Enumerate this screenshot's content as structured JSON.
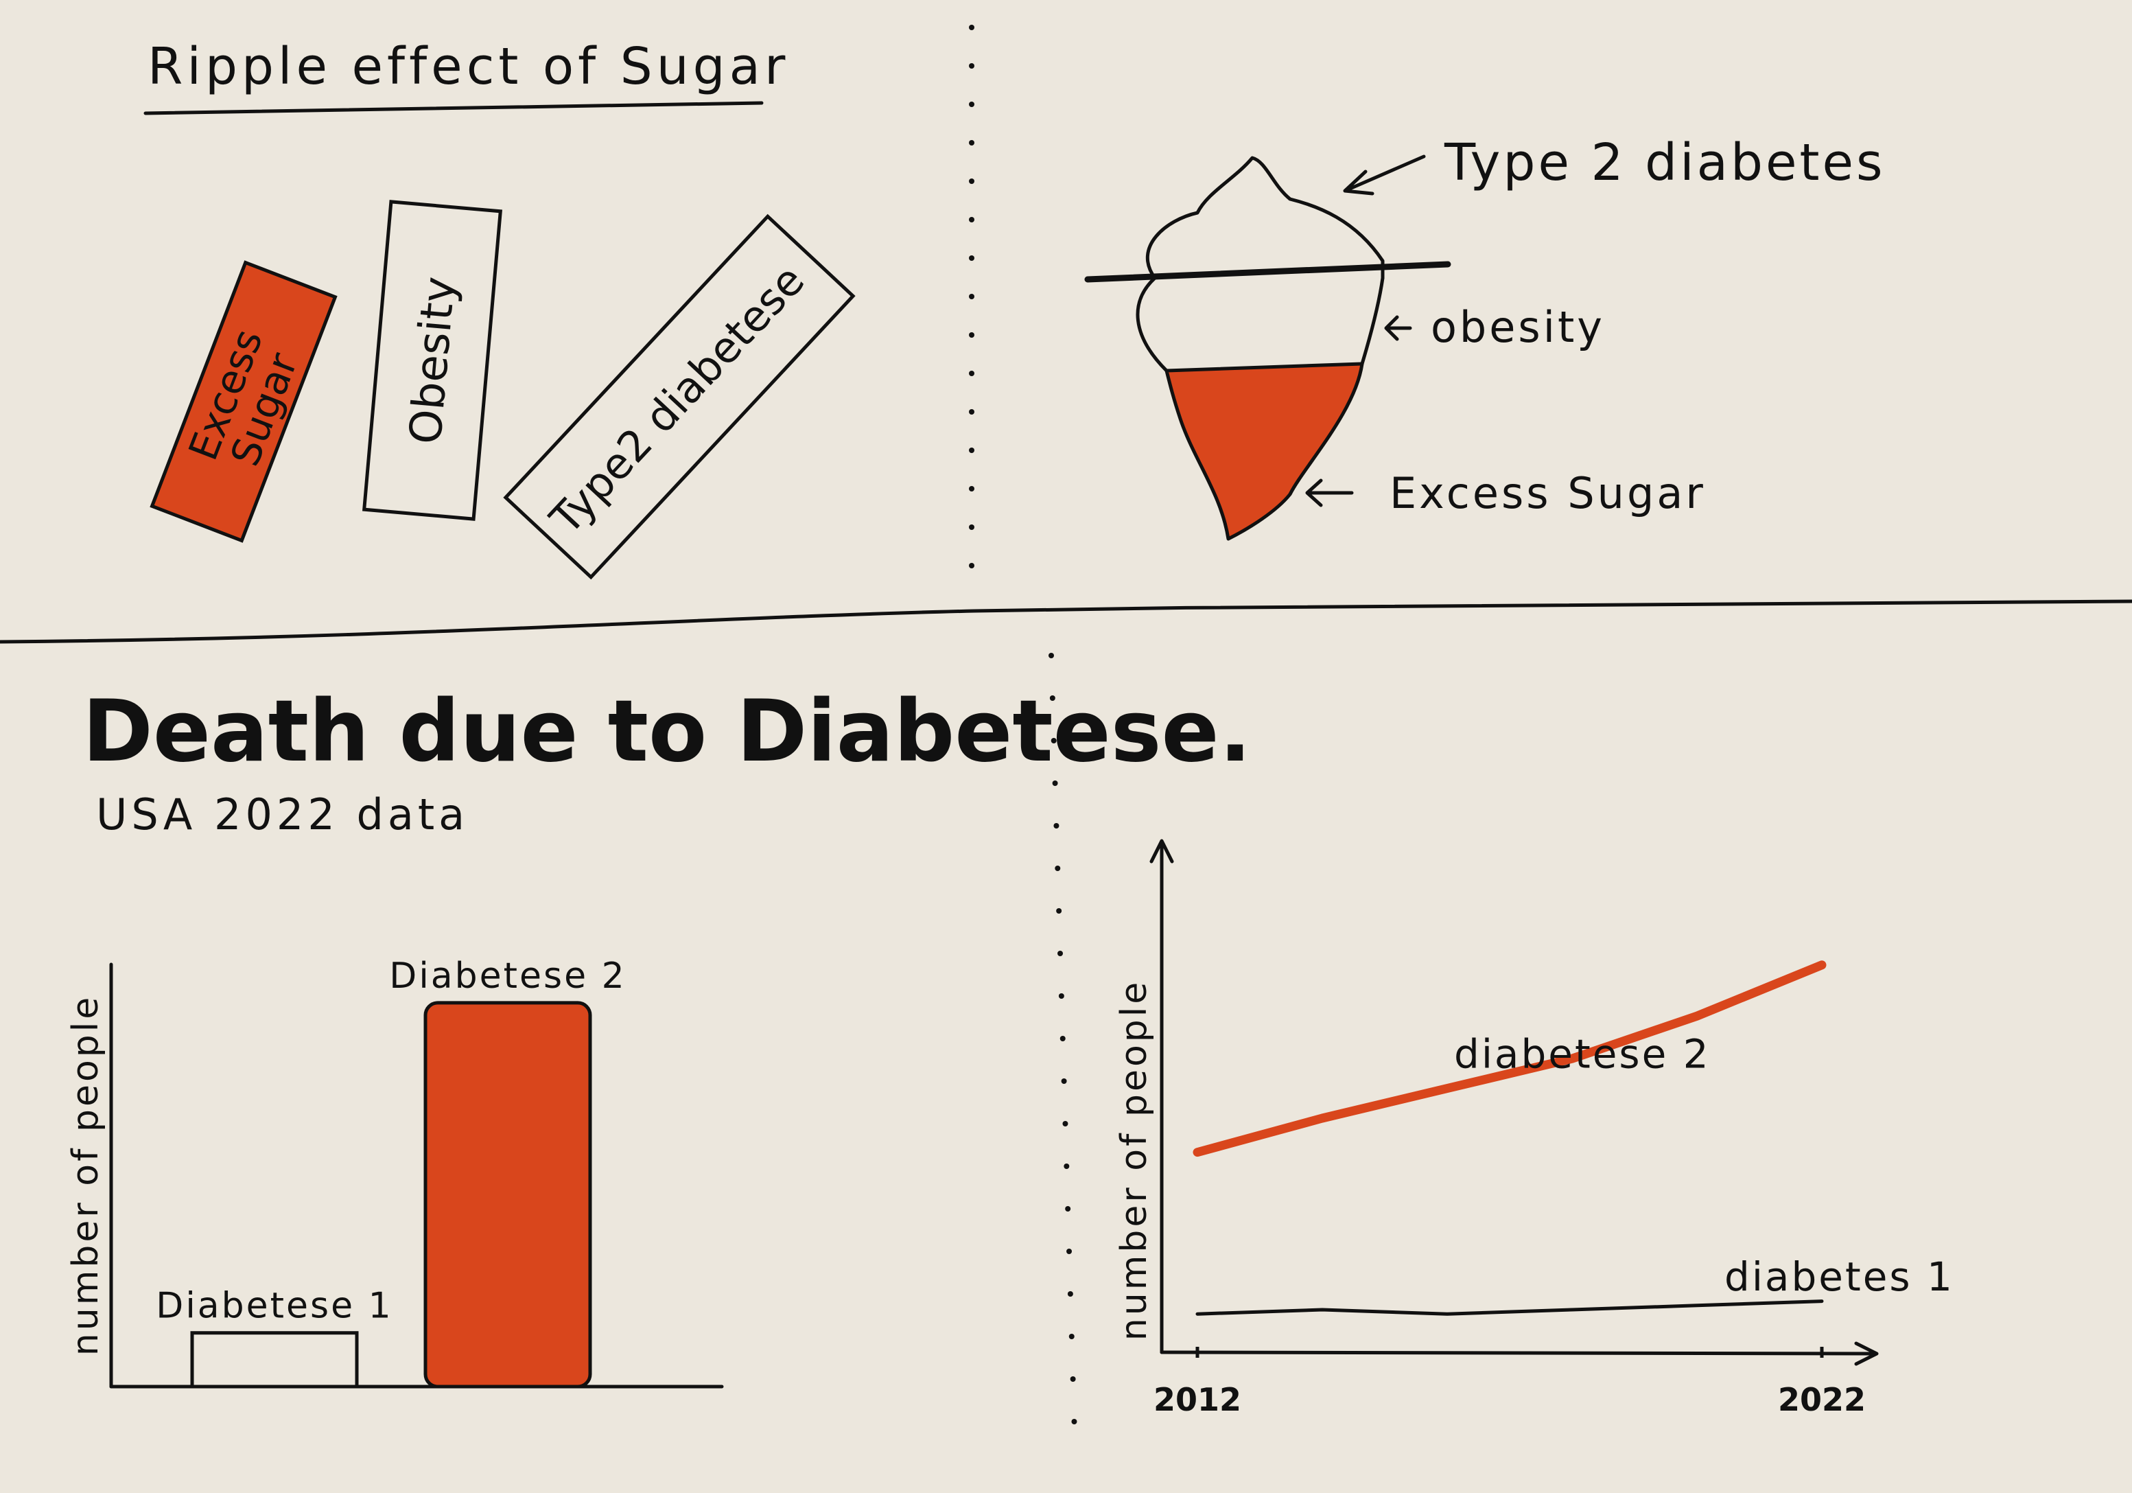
{
  "colors": {
    "paper": "#ece7dd",
    "ink": "#111111",
    "accent": "#d9461c"
  },
  "ripple": {
    "title": "Ripple effect of Sugar",
    "box_excess": [
      "Excess",
      "Sugar"
    ],
    "box_obesity": "Obesity",
    "box_type2": "Type2 diabetese"
  },
  "iceberg": {
    "label_type2": "Type 2 diabetes",
    "label_obesity": "obesity",
    "label_sugar": "Excess Sugar"
  },
  "bar_section": {
    "title": "Death due to Diabetese.",
    "subtitle": "USA 2022 data"
  },
  "chart_data": [
    {
      "type": "bar",
      "categories": [
        "Diabetese 1",
        "Diabetese 2"
      ],
      "values": [
        14,
        100
      ],
      "ylabel": "number of people",
      "ylim": [
        0,
        110
      ],
      "highlight": "Diabetese 2"
    },
    {
      "type": "line",
      "x": [
        2012,
        2014,
        2016,
        2018,
        2020,
        2022
      ],
      "xticks": [
        "2012",
        "2022"
      ],
      "series": [
        {
          "name": "diabetese 2",
          "values": [
            47,
            55,
            62,
            69,
            79,
            91
          ]
        },
        {
          "name": "diabetes 1",
          "values": [
            9,
            10,
            9,
            10,
            11,
            12
          ]
        }
      ],
      "ylabel": "number of people",
      "ylim": [
        0,
        100
      ]
    }
  ]
}
